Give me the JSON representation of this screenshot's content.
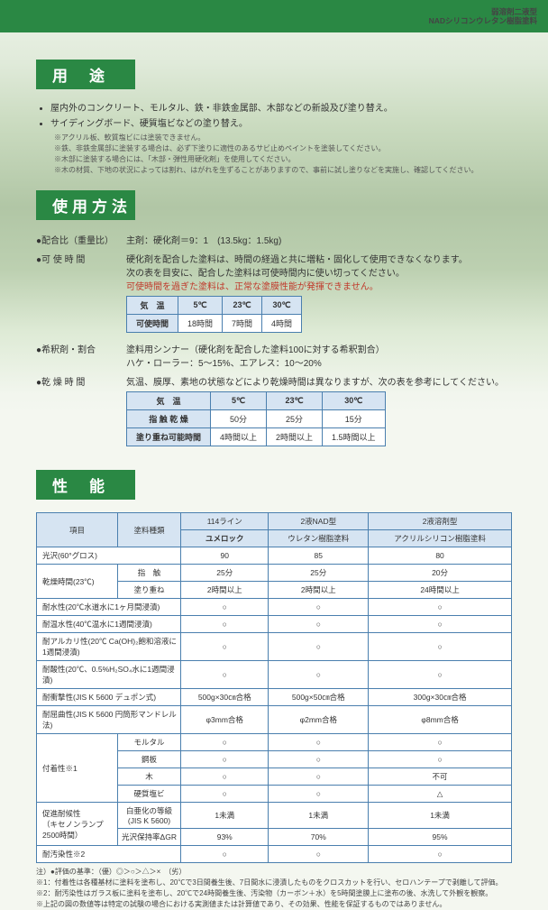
{
  "header": {
    "subtitle1": "弱溶剤二液型",
    "subtitle2": "NADシリコンウレタン樹脂塗料"
  },
  "sections": {
    "usage": "用途",
    "method": "使用方法",
    "perf": "性能"
  },
  "usage": {
    "b1": "屋内外のコンクリート、モルタル、鉄・非鉄金属部、木部などの新設及び塗り替え。",
    "b2": "サイディングボード、硬質塩ビなどの塗り替え。",
    "n1": "※アクリル板、軟質塩ビには塗装できません。",
    "n2": "※鉄、非鉄金属部に塗装する場合は、必ず下塗りに適性のあるサビ止めペイントを塗装してください。",
    "n3": "※木部に塗装する場合には、「木部・弾性用硬化剤」を使用してください。",
    "n4": "※木の材質、下地の状況によっては割れ、はがれを生ずることがありますので、事前に試し塗りなどを実施し、確認してください。"
  },
  "method": {
    "ratio_label": "●配合比（重量比）",
    "ratio_body": "主剤：硬化剤＝9：1　(13.5kg：1.5kg)",
    "potlife_label": "●可 使 時 間",
    "potlife_body1": "硬化剤を配合した塗料は、時間の経過と共に増粘・固化して使用できなくなります。",
    "potlife_body2": "次の表を目安に、配合した塗料は可使時間内に使い切ってください。",
    "potlife_body3": "可使時間を過ぎた塗料は、正常な塗膜性能が発揮できません。",
    "dilute_label": "●希釈剤・割合",
    "dilute_body1": "塗料用シンナー（硬化剤を配合した塗料100に対する希釈割合）",
    "dilute_body2": "ハケ・ローラー：5～15%、エアレス：10～20%",
    "dry_label": "●乾 燥 時 間",
    "dry_body": "気温、膜厚、素地の状態などにより乾燥時間は異なりますが、次の表を参考にしてください。"
  },
  "potlife_table": {
    "h_temp": "気　温",
    "h5": "5℃",
    "h23": "23℃",
    "h30": "30℃",
    "row_label": "可使時間",
    "v5": "18時間",
    "v23": "7時間",
    "v30": "4時間"
  },
  "dry_table": {
    "h_temp": "気　温",
    "h5": "5℃",
    "h23": "23℃",
    "h30": "30℃",
    "r1": "指 触 乾 燥",
    "r1_5": "50分",
    "r1_23": "25分",
    "r1_30": "15分",
    "r2": "塗り重ね可能時間",
    "r2_5": "4時間以上",
    "r2_23": "2時間以上",
    "r2_30": "1.5時間以上"
  },
  "perf_table": {
    "h_item": "項目",
    "h_type": "塗料種類",
    "col1a": "114ライン",
    "col1b": "ユメロック",
    "col2a": "2液NAD型",
    "col2b": "ウレタン樹脂塗料",
    "col3a": "2液溶剤型",
    "col3b": "アクリルシリコン樹脂塗料",
    "rows": [
      {
        "label": "光沢(60°グロス)",
        "colspan": 2,
        "c1": "90",
        "c2": "85",
        "c3": "80"
      },
      {
        "label": "乾燥時間(23℃)",
        "sub": "指　触",
        "c1": "25分",
        "c2": "25分",
        "c3": "20分",
        "rowspan": 2
      },
      {
        "sub": "塗り重ね",
        "c1": "2時間以上",
        "c2": "2時間以上",
        "c3": "24時間以上"
      },
      {
        "label": "耐水性(20℃水道水に1ヶ月間浸漬)",
        "colspan": 2,
        "c1": "○",
        "c2": "○",
        "c3": "○"
      },
      {
        "label": "耐温水性(40℃温水に1週間浸漬)",
        "colspan": 2,
        "c1": "○",
        "c2": "○",
        "c3": "○"
      },
      {
        "label": "耐アルカリ性(20℃ Ca(OH)₂飽和溶液に1週間浸漬)",
        "colspan": 2,
        "c1": "○",
        "c2": "○",
        "c3": "○"
      },
      {
        "label": "耐酸性(20℃、0.5%H₂SO₄水に1週間浸漬)",
        "colspan": 2,
        "c1": "○",
        "c2": "○",
        "c3": "○"
      },
      {
        "label": "耐衝撃性(JIS K 5600 デュポン式)",
        "colspan": 2,
        "c1": "500g×30㎝合格",
        "c2": "500g×50㎝合格",
        "c3": "300g×30㎝合格"
      },
      {
        "label": "耐屈曲性(JIS K 5600 円筒形マンドレル法)",
        "colspan": 2,
        "c1": "φ3mm合格",
        "c2": "φ2mm合格",
        "c3": "φ8mm合格"
      },
      {
        "label": "付着性※1",
        "sub": "モルタル",
        "c1": "○",
        "c2": "○",
        "c3": "○",
        "rowspan": 4
      },
      {
        "sub": "鋼板",
        "c1": "○",
        "c2": "○",
        "c3": "○"
      },
      {
        "sub": "木",
        "c1": "○",
        "c2": "○",
        "c3": "不可"
      },
      {
        "sub": "硬質塩ビ",
        "c1": "○",
        "c2": "○",
        "c3": "△"
      },
      {
        "label": "促進耐候性\n（キセノンランプ2500時間）",
        "sub": "白亜化の等級(JIS K 5600)",
        "c1": "1未満",
        "c2": "1未満",
        "c3": "1未満",
        "rowspan": 2
      },
      {
        "sub": "光沢保持率ΔGR",
        "c1": "93%",
        "c2": "70%",
        "c3": "95%"
      },
      {
        "label": "耐汚染性※2",
        "colspan": 2,
        "c1": "○",
        "c2": "○",
        "c3": "○"
      }
    ]
  },
  "footnotes": {
    "f0": "注）●評価の基準：（優）◎＞○＞△＞×　（劣）",
    "f1": "※1：付着性は各種基材に塗料を塗布し、20℃で3日間養生後、7日間水に浸漬したものをクロスカットを行い、セロハンテープで剥離して評価。",
    "f2": "※2：耐汚染性はガラス板に塗料を塗布し、20℃で24時間養生後、汚染物（カーボン＋水）を5時間塗膜上に塗布の後、水洗して外観を観察。",
    "f3": "※上記の図の数値等は特定の試験の場合における実測値または計算値であり、その効果、性能を保証するものではありません。"
  }
}
